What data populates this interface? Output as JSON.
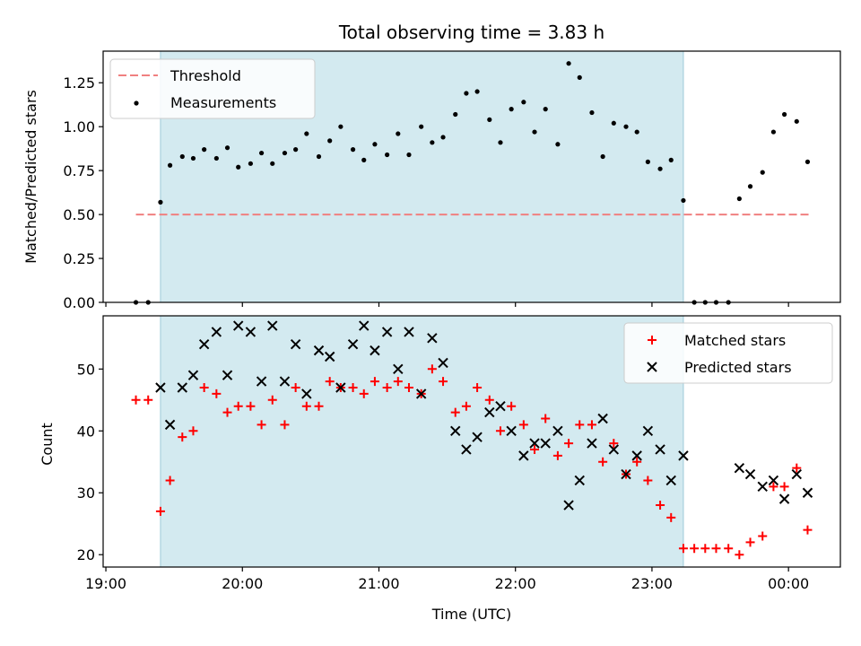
{
  "title": "Total observing time = 3.83 h",
  "x_axis": {
    "label": "Time (UTC)",
    "range_hours": [
      18.98,
      24.38
    ],
    "ticks": [
      {
        "value": 19,
        "label": "19:00"
      },
      {
        "value": 20,
        "label": "20:00"
      },
      {
        "value": 21,
        "label": "21:00"
      },
      {
        "value": 22,
        "label": "22:00"
      },
      {
        "value": 23,
        "label": "23:00"
      },
      {
        "value": 24,
        "label": "00:00"
      }
    ]
  },
  "shaded_span_hours": [
    19.4,
    23.23
  ],
  "colors": {
    "shade": "#d3eaf0",
    "shade_edge": "#9fcbd9",
    "threshold": "#f08080",
    "measurements": "#000000",
    "matched": "#ff0000",
    "predicted": "#000000"
  },
  "chart_data": [
    {
      "type": "scatter",
      "panel": "top",
      "ylabel": "Matched/Predicted stars",
      "ylim": [
        0,
        1.43
      ],
      "yticks": [
        {
          "value": 0,
          "label": "0.00"
        },
        {
          "value": 0.25,
          "label": "0.25"
        },
        {
          "value": 0.5,
          "label": "0.50"
        },
        {
          "value": 0.75,
          "label": "0.75"
        },
        {
          "value": 1.0,
          "label": "1.00"
        },
        {
          "value": 1.25,
          "label": "1.25"
        }
      ],
      "grid": false,
      "legend": "upper-left",
      "threshold": {
        "name": "Threshold",
        "value": 0.5,
        "x": [
          19.22,
          24.15
        ]
      },
      "series": [
        {
          "name": "Measurements",
          "marker": "dot",
          "points": [
            [
              19.22,
              0.0
            ],
            [
              19.31,
              0.0
            ],
            [
              19.4,
              0.57
            ],
            [
              19.47,
              0.78
            ],
            [
              19.56,
              0.83
            ],
            [
              19.64,
              0.82
            ],
            [
              19.72,
              0.87
            ],
            [
              19.81,
              0.82
            ],
            [
              19.89,
              0.88
            ],
            [
              19.97,
              0.77
            ],
            [
              20.06,
              0.79
            ],
            [
              20.14,
              0.85
            ],
            [
              20.22,
              0.79
            ],
            [
              20.31,
              0.85
            ],
            [
              20.39,
              0.87
            ],
            [
              20.47,
              0.96
            ],
            [
              20.56,
              0.83
            ],
            [
              20.64,
              0.92
            ],
            [
              20.72,
              1.0
            ],
            [
              20.81,
              0.87
            ],
            [
              20.89,
              0.81
            ],
            [
              20.97,
              0.9
            ],
            [
              21.06,
              0.84
            ],
            [
              21.14,
              0.96
            ],
            [
              21.22,
              0.84
            ],
            [
              21.31,
              1.0
            ],
            [
              21.39,
              0.91
            ],
            [
              21.47,
              0.94
            ],
            [
              21.56,
              1.07
            ],
            [
              21.64,
              1.19
            ],
            [
              21.72,
              1.2
            ],
            [
              21.81,
              1.04
            ],
            [
              21.89,
              0.91
            ],
            [
              21.97,
              1.1
            ],
            [
              22.06,
              1.14
            ],
            [
              22.14,
              0.97
            ],
            [
              22.22,
              1.1
            ],
            [
              22.31,
              0.9
            ],
            [
              22.39,
              1.36
            ],
            [
              22.47,
              1.28
            ],
            [
              22.56,
              1.08
            ],
            [
              22.64,
              0.83
            ],
            [
              22.72,
              1.02
            ],
            [
              22.81,
              1.0
            ],
            [
              22.89,
              0.97
            ],
            [
              22.97,
              0.8
            ],
            [
              23.06,
              0.76
            ],
            [
              23.14,
              0.81
            ],
            [
              23.23,
              0.58
            ],
            [
              23.31,
              0.0
            ],
            [
              23.39,
              0.0
            ],
            [
              23.47,
              0.0
            ],
            [
              23.56,
              0.0
            ],
            [
              23.64,
              0.59
            ],
            [
              23.72,
              0.66
            ],
            [
              23.81,
              0.74
            ],
            [
              23.89,
              0.97
            ],
            [
              23.97,
              1.07
            ],
            [
              24.06,
              1.03
            ],
            [
              24.14,
              0.8
            ]
          ]
        }
      ]
    },
    {
      "type": "scatter",
      "panel": "bottom",
      "ylabel": "Count",
      "ylim": [
        18,
        58.6
      ],
      "yticks": [
        {
          "value": 20,
          "label": "20"
        },
        {
          "value": 30,
          "label": "30"
        },
        {
          "value": 40,
          "label": "40"
        },
        {
          "value": 50,
          "label": "50"
        }
      ],
      "grid": false,
      "legend": "upper-right",
      "series": [
        {
          "name": "Matched stars",
          "marker": "plus",
          "points": [
            [
              19.22,
              45
            ],
            [
              19.31,
              45
            ],
            [
              19.4,
              27
            ],
            [
              19.47,
              32
            ],
            [
              19.56,
              39
            ],
            [
              19.64,
              40
            ],
            [
              19.72,
              47
            ],
            [
              19.81,
              46
            ],
            [
              19.89,
              43
            ],
            [
              19.97,
              44
            ],
            [
              20.06,
              44
            ],
            [
              20.14,
              41
            ],
            [
              20.22,
              45
            ],
            [
              20.31,
              41
            ],
            [
              20.39,
              47
            ],
            [
              20.47,
              44
            ],
            [
              20.56,
              44
            ],
            [
              20.64,
              48
            ],
            [
              20.72,
              47
            ],
            [
              20.81,
              47
            ],
            [
              20.89,
              46
            ],
            [
              20.97,
              48
            ],
            [
              21.06,
              47
            ],
            [
              21.14,
              48
            ],
            [
              21.22,
              47
            ],
            [
              21.31,
              46
            ],
            [
              21.39,
              50
            ],
            [
              21.47,
              48
            ],
            [
              21.56,
              43
            ],
            [
              21.64,
              44
            ],
            [
              21.72,
              47
            ],
            [
              21.81,
              45
            ],
            [
              21.89,
              40
            ],
            [
              21.97,
              44
            ],
            [
              22.06,
              41
            ],
            [
              22.14,
              37
            ],
            [
              22.22,
              42
            ],
            [
              22.31,
              36
            ],
            [
              22.39,
              38
            ],
            [
              22.47,
              41
            ],
            [
              22.56,
              41
            ],
            [
              22.64,
              35
            ],
            [
              22.72,
              38
            ],
            [
              22.81,
              33
            ],
            [
              22.89,
              35
            ],
            [
              22.97,
              32
            ],
            [
              23.06,
              28
            ],
            [
              23.14,
              26
            ],
            [
              23.23,
              21
            ],
            [
              23.31,
              21
            ],
            [
              23.39,
              21
            ],
            [
              23.47,
              21
            ],
            [
              23.56,
              21
            ],
            [
              23.64,
              20
            ],
            [
              23.72,
              22
            ],
            [
              23.81,
              23
            ],
            [
              23.89,
              31
            ],
            [
              23.97,
              31
            ],
            [
              24.06,
              34
            ],
            [
              24.14,
              24
            ]
          ]
        },
        {
          "name": "Predicted stars",
          "marker": "cross",
          "points": [
            [
              19.4,
              47
            ],
            [
              19.47,
              41
            ],
            [
              19.56,
              47
            ],
            [
              19.64,
              49
            ],
            [
              19.72,
              54
            ],
            [
              19.81,
              56
            ],
            [
              19.89,
              49
            ],
            [
              19.97,
              57
            ],
            [
              20.06,
              56
            ],
            [
              20.14,
              48
            ],
            [
              20.22,
              57
            ],
            [
              20.31,
              48
            ],
            [
              20.39,
              54
            ],
            [
              20.47,
              46
            ],
            [
              20.56,
              53
            ],
            [
              20.64,
              52
            ],
            [
              20.72,
              47
            ],
            [
              20.81,
              54
            ],
            [
              20.89,
              57
            ],
            [
              20.97,
              53
            ],
            [
              21.06,
              56
            ],
            [
              21.14,
              50
            ],
            [
              21.22,
              56
            ],
            [
              21.31,
              46
            ],
            [
              21.39,
              55
            ],
            [
              21.47,
              51
            ],
            [
              21.56,
              40
            ],
            [
              21.64,
              37
            ],
            [
              21.72,
              39
            ],
            [
              21.81,
              43
            ],
            [
              21.89,
              44
            ],
            [
              21.97,
              40
            ],
            [
              22.06,
              36
            ],
            [
              22.14,
              38
            ],
            [
              22.22,
              38
            ],
            [
              22.31,
              40
            ],
            [
              22.39,
              28
            ],
            [
              22.47,
              32
            ],
            [
              22.56,
              38
            ],
            [
              22.64,
              42
            ],
            [
              22.72,
              37
            ],
            [
              22.81,
              33
            ],
            [
              22.89,
              36
            ],
            [
              22.97,
              40
            ],
            [
              23.06,
              37
            ],
            [
              23.14,
              32
            ],
            [
              23.23,
              36
            ],
            [
              23.64,
              34
            ],
            [
              23.72,
              33
            ],
            [
              23.81,
              31
            ],
            [
              23.89,
              32
            ],
            [
              23.97,
              29
            ],
            [
              24.06,
              33
            ],
            [
              24.14,
              30
            ]
          ]
        }
      ]
    }
  ]
}
